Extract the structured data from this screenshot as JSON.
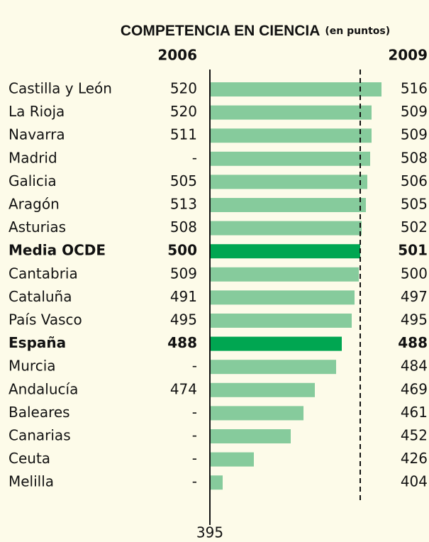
{
  "chart_data": {
    "type": "bar",
    "title": "COMPETENCIA EN CIENCIA",
    "subtitle": "(en puntos)",
    "categories": [
      "Castilla y León",
      "La Rioja",
      "Navarra",
      "Madrid",
      "Galicia",
      "Aragón",
      "Asturias",
      "Media OCDE",
      "Cantabria",
      "Cataluña",
      "País Vasco",
      "España",
      "Murcia",
      "Andalucía",
      "Baleares",
      "Canarias",
      "Ceuta",
      "Melilla"
    ],
    "bold_categories": [
      false,
      false,
      false,
      false,
      false,
      false,
      false,
      true,
      false,
      false,
      false,
      true,
      false,
      false,
      false,
      false,
      false,
      false
    ],
    "series": [
      {
        "name": "2006",
        "values": [
          520,
          520,
          511,
          null,
          505,
          513,
          508,
          500,
          509,
          491,
          495,
          488,
          null,
          474,
          null,
          null,
          null,
          null
        ],
        "value_labels": [
          "520",
          "520",
          "511",
          "-",
          "505",
          "513",
          "508",
          "500",
          "509",
          "491",
          "495",
          "488",
          "-",
          "474",
          "-",
          "-",
          "-",
          "-"
        ]
      },
      {
        "name": "2009",
        "values": [
          516,
          509,
          509,
          508,
          506,
          505,
          502,
          501,
          500,
          497,
          495,
          488,
          484,
          469,
          461,
          452,
          426,
          404
        ],
        "colors": [
          "#86cb9c",
          "#86cb9c",
          "#86cb9c",
          "#86cb9c",
          "#86cb9c",
          "#86cb9c",
          "#86cb9c",
          "#00a651",
          "#86cb9c",
          "#86cb9c",
          "#86cb9c",
          "#00a651",
          "#86cb9c",
          "#86cb9c",
          "#86cb9c",
          "#86cb9c",
          "#86cb9c",
          "#86cb9c"
        ]
      }
    ],
    "reference_line": 501,
    "xlim": [
      395,
      520
    ],
    "xticks": [
      395
    ]
  }
}
